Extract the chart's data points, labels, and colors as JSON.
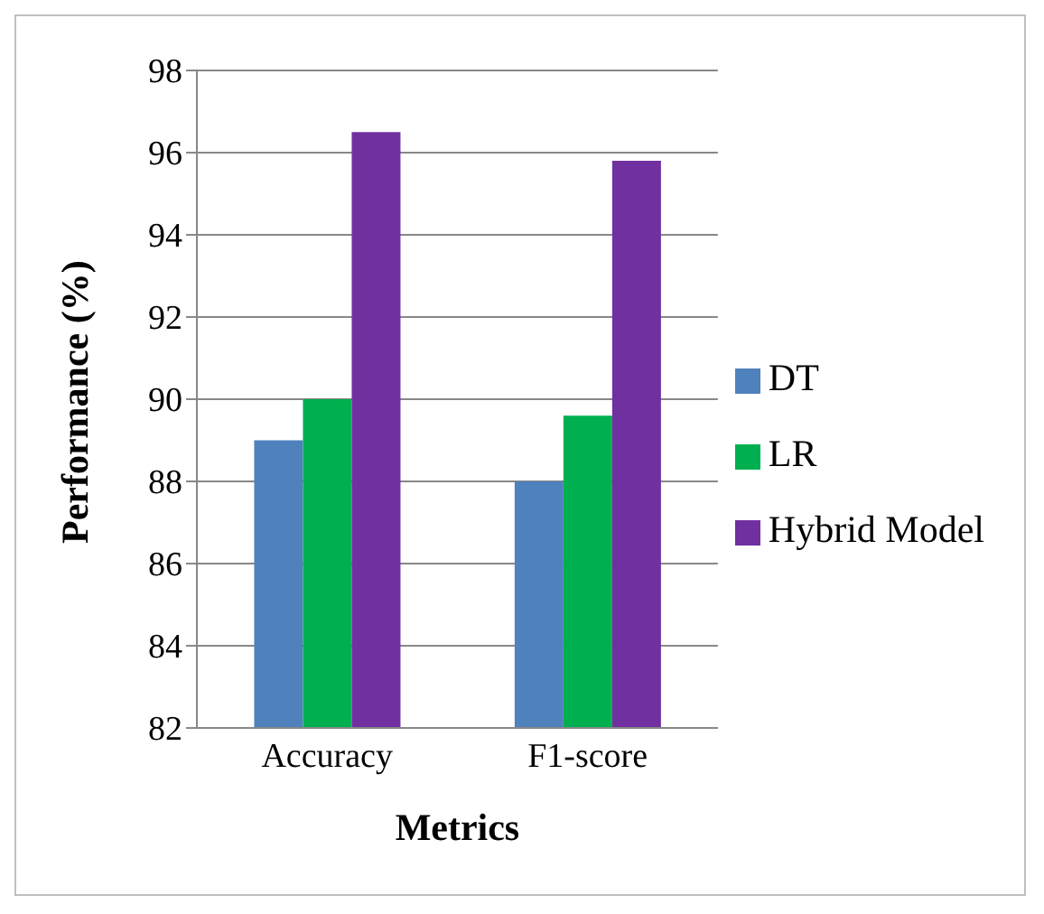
{
  "chart_data": {
    "type": "bar",
    "xlabel": "Metrics",
    "ylabel": "Performance (%)",
    "categories": [
      "Accuracy",
      "F1-score"
    ],
    "series": [
      {
        "name": "DT",
        "color": "#4f81bd",
        "values": [
          89,
          88
        ]
      },
      {
        "name": "LR",
        "color": "#00b050",
        "values": [
          90,
          89.6
        ]
      },
      {
        "name": "Hybrid Model",
        "color": "#7030a0",
        "values": [
          96.5,
          95.8
        ]
      }
    ],
    "ylim": [
      82,
      98
    ],
    "yticks": [
      82,
      84,
      86,
      88,
      90,
      92,
      94,
      96,
      98
    ],
    "grid": "y",
    "legend": "right"
  }
}
